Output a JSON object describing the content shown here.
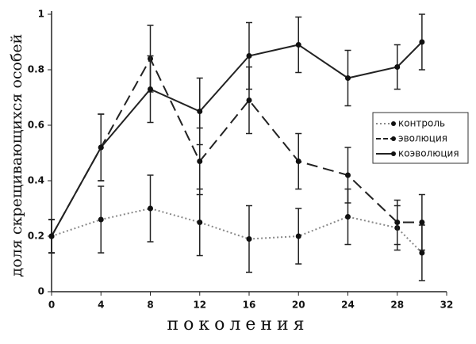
{
  "chart_data": {
    "type": "line",
    "xlabel": "поколения",
    "ylabel": "доля скрещивающихся особей",
    "x": [
      0,
      4,
      8,
      12,
      16,
      20,
      24,
      28,
      30
    ],
    "xlim": [
      0,
      32
    ],
    "xticks": [
      0,
      4,
      8,
      12,
      16,
      20,
      24,
      28,
      32
    ],
    "ylim": [
      0,
      1
    ],
    "yticks": [
      0,
      0.2,
      0.4,
      0.6,
      0.8,
      1
    ],
    "legend": "right",
    "series": [
      {
        "name": "контроль",
        "color": "#888888",
        "line_style": "dotted",
        "values": [
          0.2,
          0.26,
          0.3,
          0.25,
          0.19,
          0.2,
          0.27,
          0.23,
          0.14
        ],
        "errors": [
          0.06,
          0.12,
          0.12,
          0.12,
          0.12,
          0.1,
          0.1,
          0.08,
          0.1
        ]
      },
      {
        "name": "эволюция",
        "color": "#222222",
        "line_style": "dashed",
        "values": [
          0.2,
          0.52,
          0.84,
          0.47,
          0.69,
          0.47,
          0.42,
          0.25,
          0.25
        ],
        "errors": [
          0.06,
          0.12,
          0.12,
          0.12,
          0.12,
          0.1,
          0.1,
          0.08,
          0.1
        ]
      },
      {
        "name": "коэволюция",
        "color": "#222222",
        "line_style": "solid",
        "values": [
          0.2,
          0.52,
          0.73,
          0.65,
          0.85,
          0.89,
          0.77,
          0.81,
          0.9
        ],
        "errors": [
          0.06,
          0.12,
          0.12,
          0.12,
          0.12,
          0.1,
          0.1,
          0.08,
          0.1
        ]
      }
    ]
  }
}
